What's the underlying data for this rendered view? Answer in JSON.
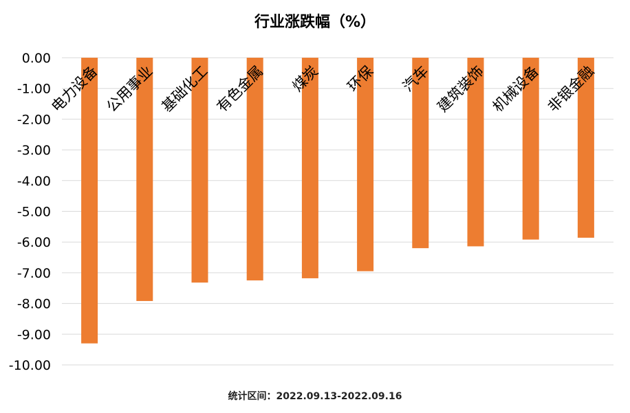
{
  "chart_data": {
    "type": "bar",
    "title": "行业涨跌幅（%）",
    "xlabel": "",
    "ylabel": "",
    "categories": [
      "电力设备",
      "公用事业",
      "基础化工",
      "有色金属",
      "煤炭",
      "环保",
      "汽车",
      "建筑装饰",
      "机械设备",
      "非银金融"
    ],
    "values": [
      -9.3,
      -7.92,
      -7.32,
      -7.25,
      -7.18,
      -6.95,
      -6.2,
      -6.14,
      -5.92,
      -5.86
    ],
    "ylim": [
      -10,
      0
    ],
    "yticks": [
      "0.00",
      "-1.00",
      "-2.00",
      "-3.00",
      "-4.00",
      "-5.00",
      "-6.00",
      "-7.00",
      "-8.00",
      "-9.00",
      "-10.00"
    ],
    "grid": true,
    "legend": "none",
    "bar_color": "#ED7D31",
    "grid_color": "#D9D9D9"
  },
  "footnote": "统计区间：2022.09.13-2022.09.16"
}
